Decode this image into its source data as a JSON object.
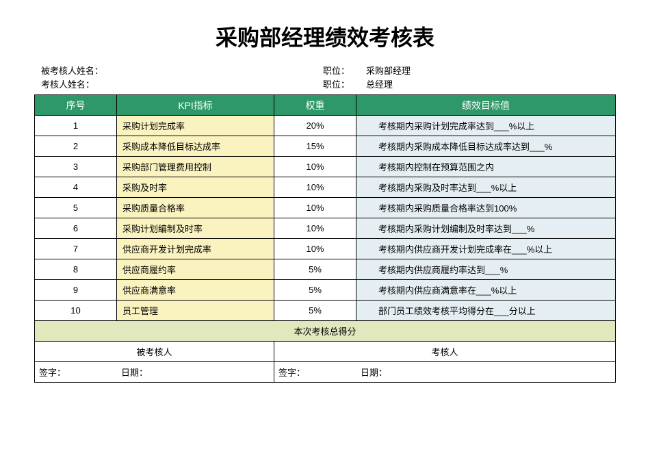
{
  "title": "采购部经理绩效考核表",
  "meta": {
    "evaluateeLabel": "被考核人姓名：",
    "evaluatorLabel": "考核人姓名：",
    "positionLabel": "职位：",
    "evaluateePosition": "采购部经理",
    "evaluatorPosition": "总经理"
  },
  "headers": {
    "seq": "序号",
    "kpi": "KPI指标",
    "weight": "权重",
    "target": "绩效目标值"
  },
  "rows": [
    {
      "seq": "1",
      "kpi": "采购计划完成率",
      "weight": "20%",
      "target": "考核期内采购计划完成率达到___%以上"
    },
    {
      "seq": "2",
      "kpi": "采购成本降低目标达成率",
      "weight": "15%",
      "target": "考核期内采购成本降低目标达成率达到___%"
    },
    {
      "seq": "3",
      "kpi": "采购部门管理费用控制",
      "weight": "10%",
      "target": "考核期内控制在预算范围之内"
    },
    {
      "seq": "4",
      "kpi": "采购及时率",
      "weight": "10%",
      "target": "考核期内采购及时率达到___%以上"
    },
    {
      "seq": "5",
      "kpi": "采购质量合格率",
      "weight": "10%",
      "target": "考核期内采购质量合格率达到100%"
    },
    {
      "seq": "6",
      "kpi": "采购计划编制及时率",
      "weight": "10%",
      "target": "考核期内采购计划编制及时率达到___%"
    },
    {
      "seq": "7",
      "kpi": "供应商开发计划完成率",
      "weight": "10%",
      "target": "考核期内供应商开发计划完成率在___%以上"
    },
    {
      "seq": "8",
      "kpi": "供应商履约率",
      "weight": "5%",
      "target": "考核期内供应商履约率达到___%"
    },
    {
      "seq": "9",
      "kpi": "供应商满意率",
      "weight": "5%",
      "target": "考核期内供应商满意率在___%以上"
    },
    {
      "seq": "10",
      "kpi": "员工管理",
      "weight": "5%",
      "target": "部门员工绩效考核平均得分在___分以上"
    }
  ],
  "footer": {
    "totalLabel": "本次考核总得分",
    "evaluateeHeader": "被考核人",
    "evaluatorHeader": "考核人",
    "signLabel": "签字：",
    "dateLabel": "日期："
  },
  "colors": {
    "headerBg": "#2e9868",
    "kpiBg": "#faf3c0",
    "targetBg": "#e5eef2",
    "totalBg": "#e2e8be"
  }
}
